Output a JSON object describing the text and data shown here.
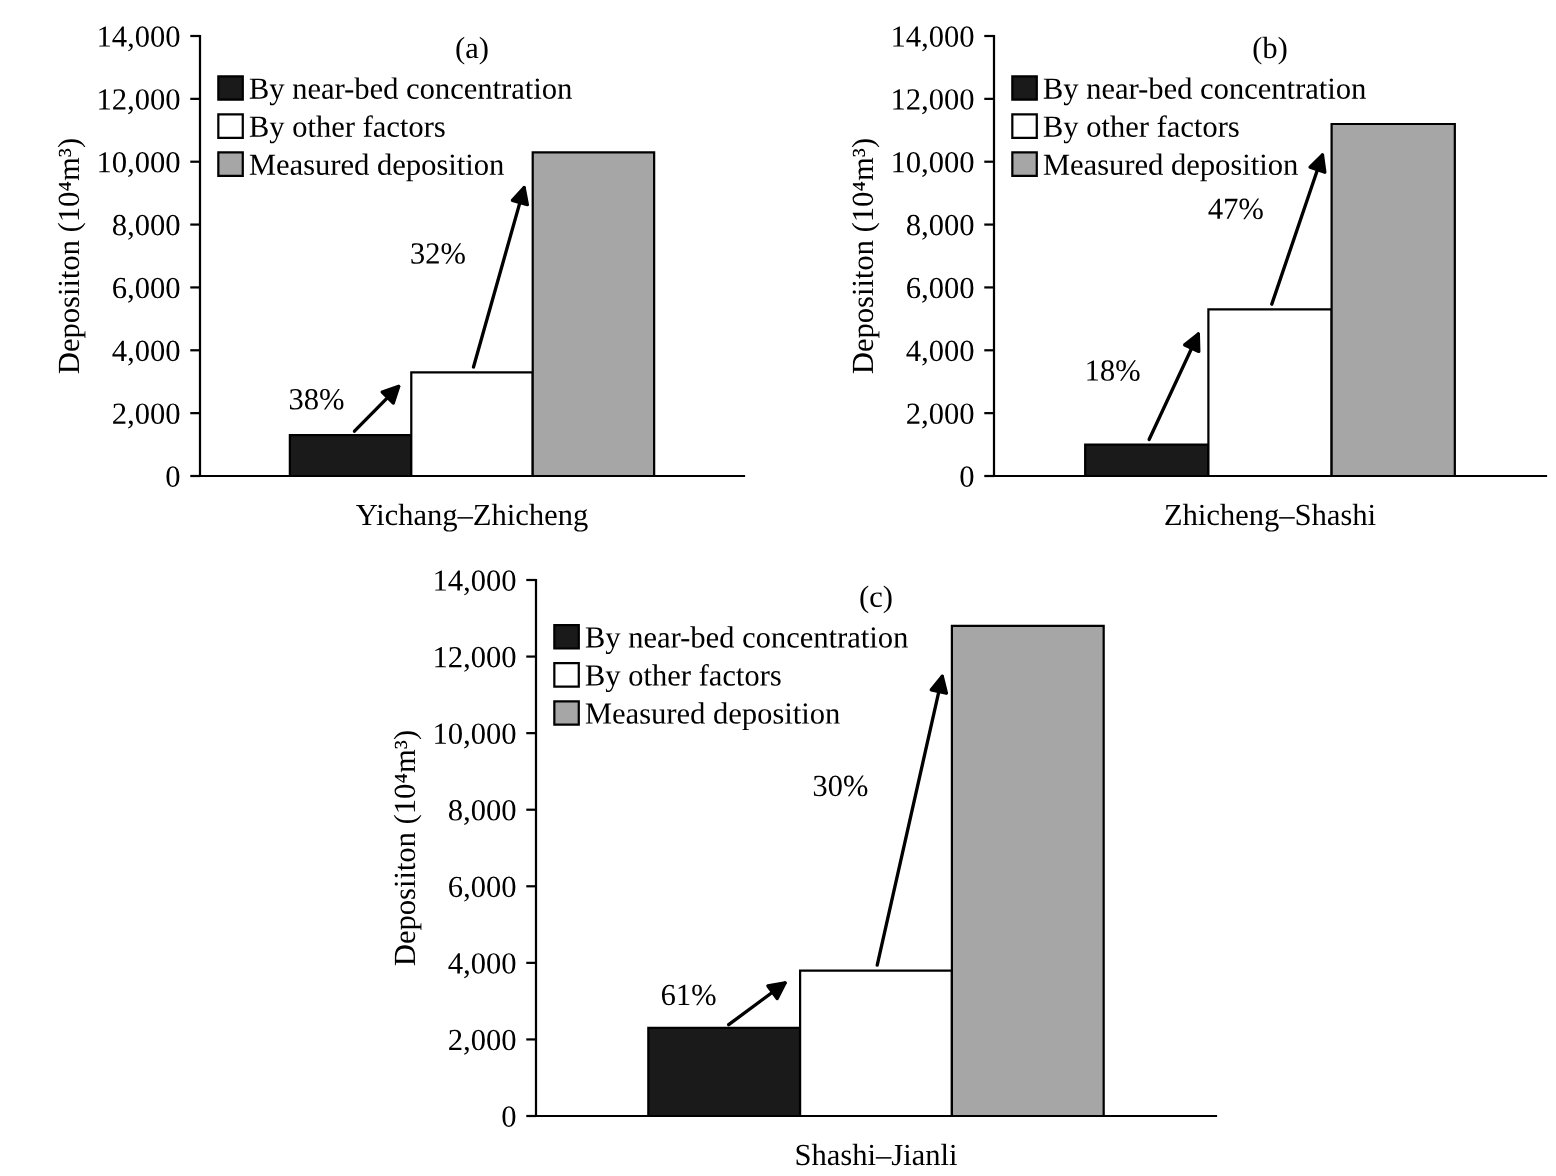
{
  "chart_data": [
    {
      "type": "bar",
      "title": "(a)",
      "categories": [
        null,
        "Yichang–Zhicheng",
        null
      ],
      "ylabel": "Deposiiton (10⁴m³)",
      "ylim": [
        0,
        14000
      ],
      "yticks": [
        0,
        {
          "value": 2000,
          "label": "2,000"
        },
        {
          "value": 4000,
          "label": "4,000"
        },
        {
          "value": 6000,
          "label": "6,000"
        },
        {
          "value": 8000,
          "label": "8,000"
        },
        {
          "value": 10000,
          "label": "10,000"
        },
        {
          "value": 12000,
          "label": "12,000"
        },
        {
          "value": 14000,
          "label": "14,000"
        }
      ],
      "legend": "top left",
      "annotations": [
        "38%",
        "32%"
      ],
      "series": [
        {
          "name": "By near-bed concentration",
          "color": "#1a1a1a",
          "values": [
            1300,
            null,
            null
          ]
        },
        {
          "name": "By other factors",
          "color": "#ffffff",
          "values": [
            null,
            3300,
            null
          ]
        },
        {
          "name": "Measured deposition",
          "color": "#a6a6a6",
          "values": [
            null,
            null,
            10300
          ]
        }
      ]
    },
    {
      "type": "bar",
      "title": "(b)",
      "categories": [
        null,
        "Zhicheng–Shashi",
        null
      ],
      "ylabel": "Deposiiton (10⁴m³)",
      "ylim": [
        0,
        14000
      ],
      "yticks": [
        0,
        {
          "value": 2000,
          "label": "2,000"
        },
        {
          "value": 4000,
          "label": "4,000"
        },
        {
          "value": 6000,
          "label": "6,000"
        },
        {
          "value": 8000,
          "label": "8,000"
        },
        {
          "value": 10000,
          "label": "10,000"
        },
        {
          "value": 12000,
          "label": "12,000"
        },
        {
          "value": 14000,
          "label": "14,000"
        }
      ],
      "legend": "top left",
      "annotations": [
        "18%",
        "47%"
      ],
      "series": [
        {
          "name": "By near-bed concentration",
          "color": "#1a1a1a",
          "values": [
            1000,
            null,
            null
          ]
        },
        {
          "name": "By other factors",
          "color": "#ffffff",
          "values": [
            null,
            5300,
            null
          ]
        },
        {
          "name": "Measured deposition",
          "color": "#a6a6a6",
          "values": [
            null,
            null,
            11200
          ]
        }
      ]
    },
    {
      "type": "bar",
      "title": "(c)",
      "categories": [
        null,
        "Shashi–Jianli",
        null
      ],
      "ylabel": "Deposiiton (10⁴m³)",
      "ylim": [
        0,
        14000
      ],
      "yticks": [
        0,
        {
          "value": 2000,
          "label": "2,000"
        },
        {
          "value": 4000,
          "label": "4,000"
        },
        {
          "value": 6000,
          "label": "6,000"
        },
        {
          "value": 8000,
          "label": "8,000"
        },
        {
          "value": 10000,
          "label": "10,000"
        },
        {
          "value": 12000,
          "label": "12,000"
        },
        {
          "value": 14000,
          "label": "14,000"
        }
      ],
      "legend": "top left",
      "annotations": [
        "61%",
        "30%"
      ],
      "series": [
        {
          "name": "By near-bed concentration",
          "color": "#1a1a1a",
          "values": [
            2300,
            null,
            null
          ]
        },
        {
          "name": "By other factors",
          "color": "#ffffff",
          "values": [
            null,
            3800,
            null
          ]
        },
        {
          "name": "Measured deposition",
          "color": "#a6a6a6",
          "values": [
            null,
            null,
            12800
          ]
        }
      ]
    }
  ]
}
